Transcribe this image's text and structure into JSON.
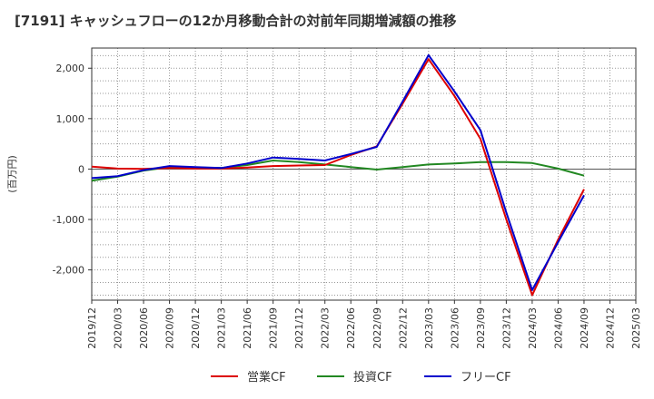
{
  "chart_data": {
    "type": "line",
    "title": "[7191]  キャッシュフローの12か月移動合計の対前年同期増減額の推移",
    "ylabel": "(百万円)",
    "xlabel": "",
    "x": [
      "2019/12",
      "2020/03",
      "2020/06",
      "2020/09",
      "2020/12",
      "2021/03",
      "2021/06",
      "2021/09",
      "2021/12",
      "2022/03",
      "2022/06",
      "2022/09",
      "2022/12",
      "2023/03",
      "2023/06",
      "2023/09",
      "2023/12",
      "2024/03",
      "2024/06",
      "2024/09",
      "2024/12",
      "2025/03"
    ],
    "ylim": [
      -2600,
      2400
    ],
    "yticks": [
      -2000,
      -1000,
      0,
      1000,
      2000
    ],
    "ytick_labels": [
      "-2,000",
      "-1,000",
      "0",
      "1,000",
      "2,000"
    ],
    "grid": true,
    "legend_position": "bottom",
    "series": [
      {
        "name": "営業CF",
        "color": "#dd0000",
        "values": [
          50,
          10,
          5,
          20,
          10,
          10,
          30,
          60,
          70,
          80,
          280,
          450,
          1300,
          2180,
          1450,
          600,
          -1000,
          -2500,
          -1400,
          -400,
          null,
          null
        ]
      },
      {
        "name": "投資CF",
        "color": "#228822",
        "values": [
          -230,
          -150,
          -30,
          40,
          30,
          20,
          80,
          170,
          140,
          90,
          40,
          -10,
          40,
          90,
          110,
          140,
          140,
          120,
          10,
          -130,
          null,
          null
        ]
      },
      {
        "name": "フリーCF",
        "color": "#0000cc",
        "values": [
          -180,
          -140,
          -20,
          60,
          40,
          20,
          110,
          230,
          200,
          170,
          300,
          440,
          1340,
          2260,
          1540,
          770,
          -860,
          -2400,
          -1450,
          -520,
          null,
          null
        ]
      }
    ]
  }
}
